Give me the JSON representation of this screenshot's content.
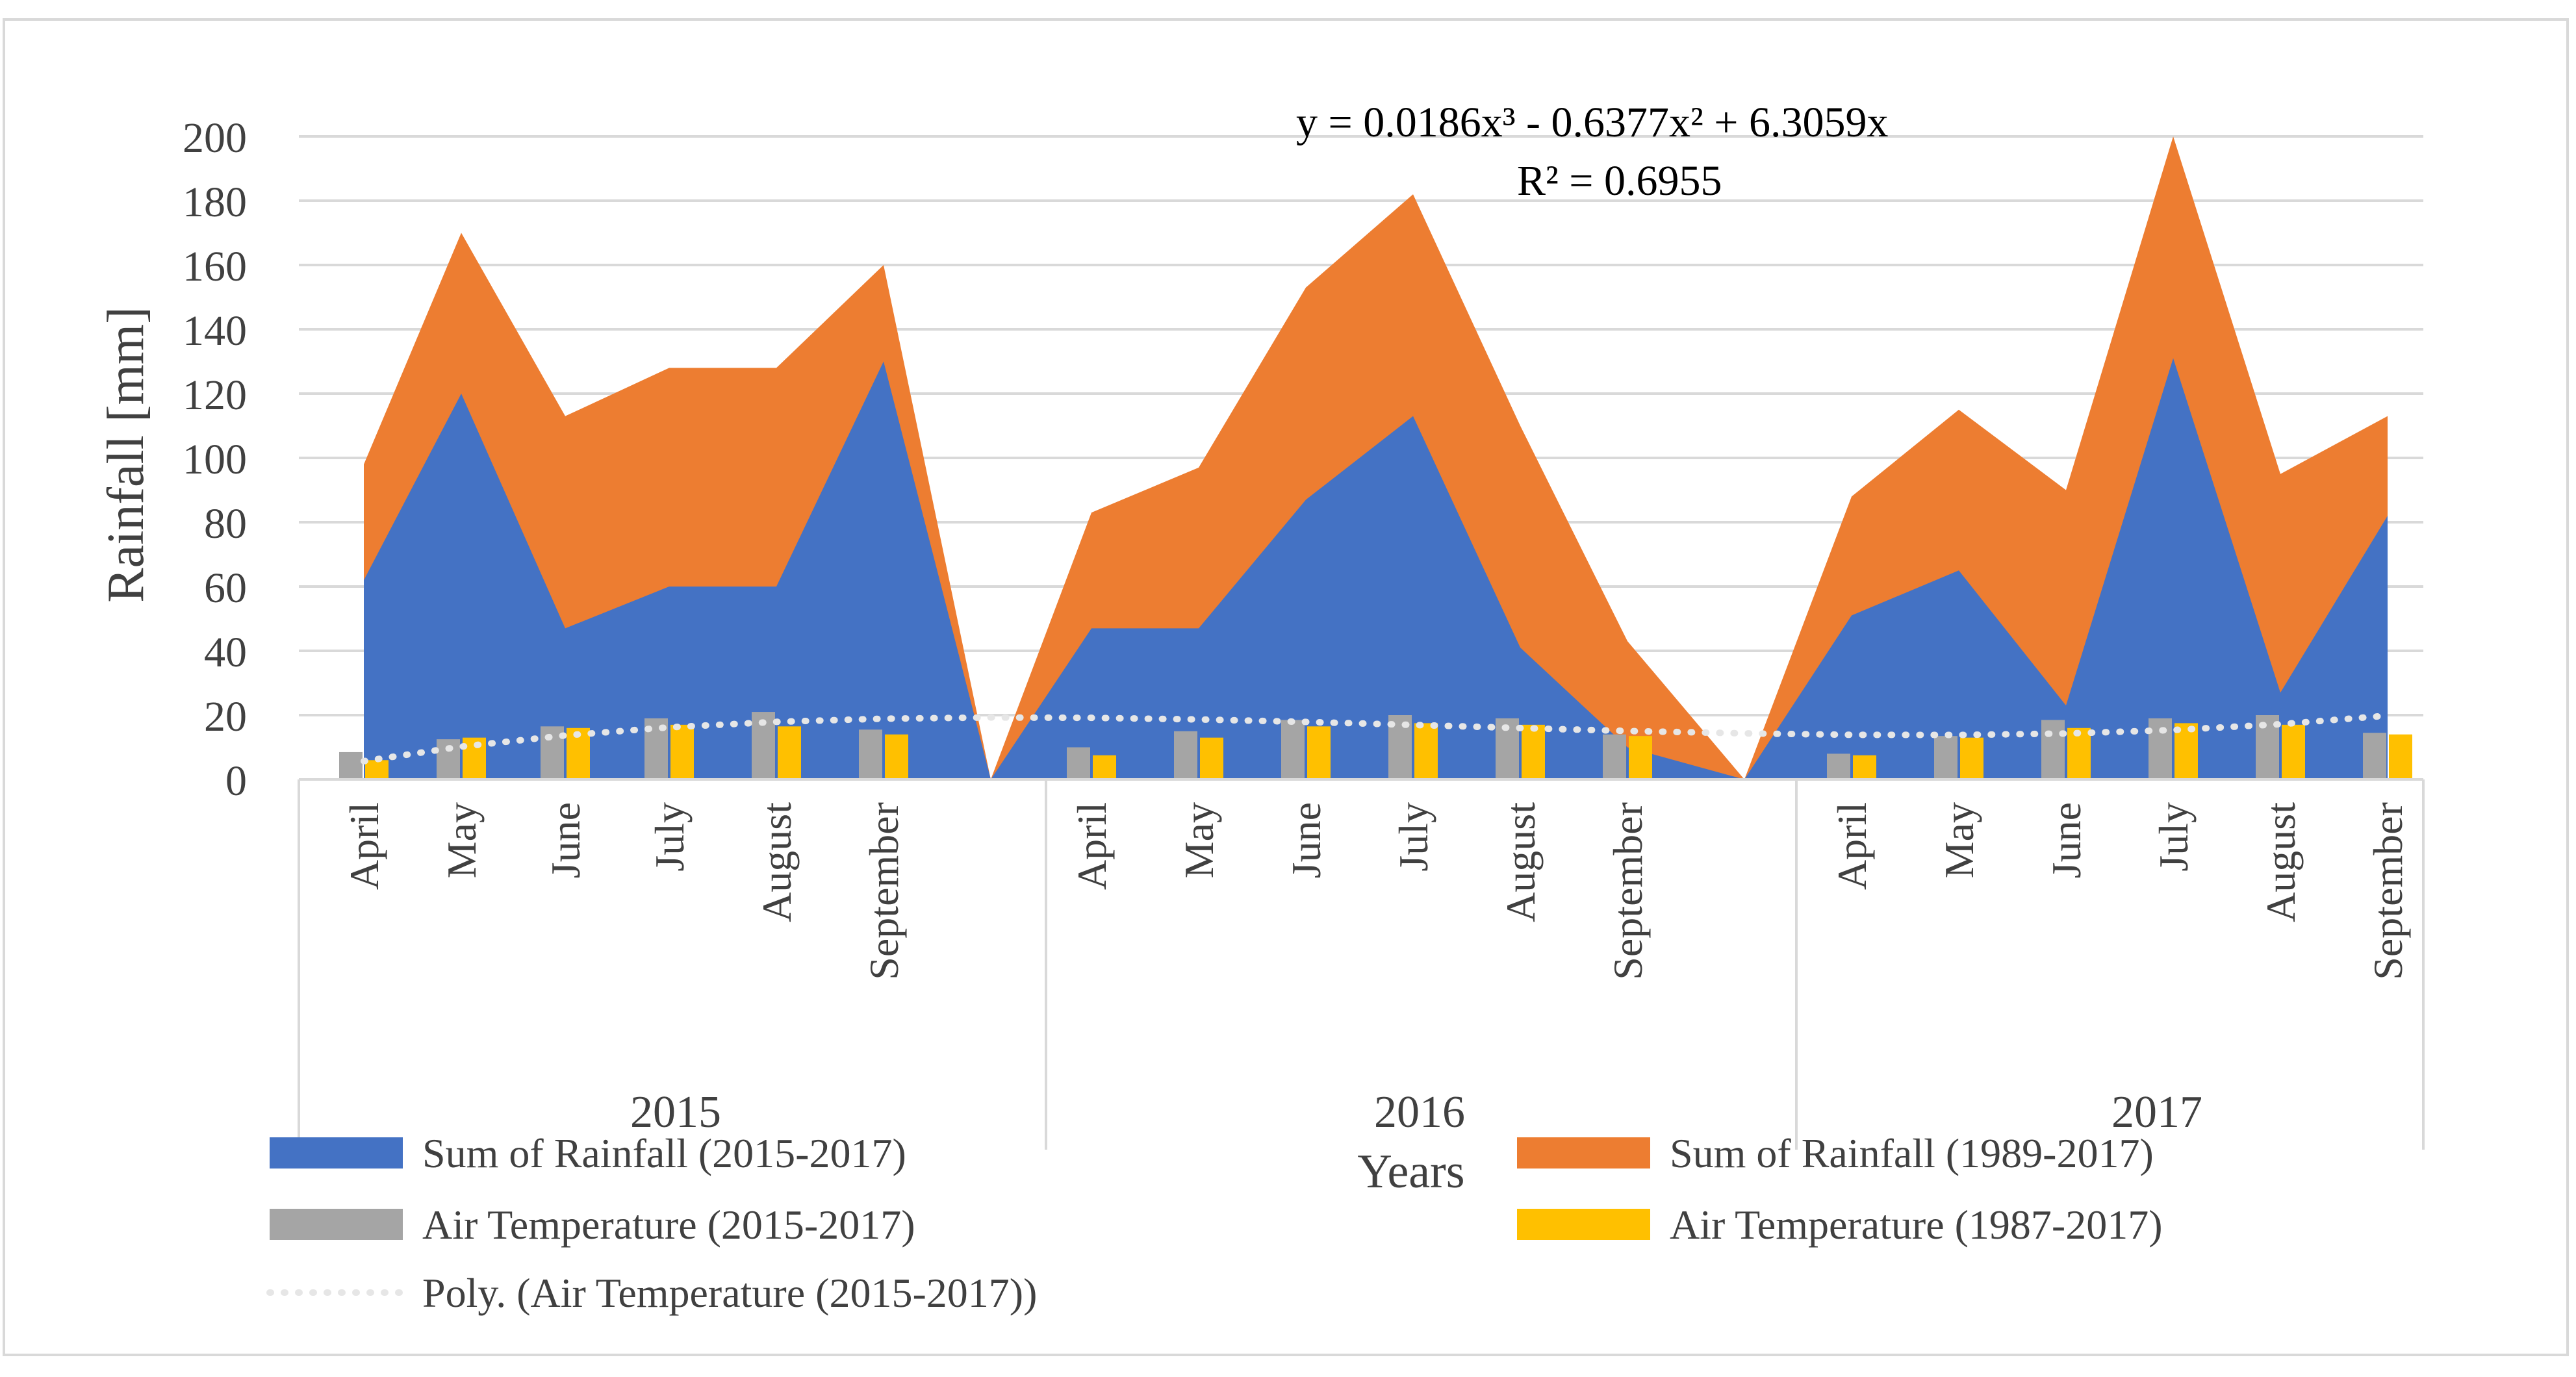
{
  "chart_data": {
    "type": "area",
    "ylabel": "Rainfall [mm]",
    "xlabel": "Years",
    "ylim": [
      0,
      200
    ],
    "yticks": [
      "0",
      "20",
      "40",
      "60",
      "80",
      "100",
      "120",
      "140",
      "160",
      "180",
      "200"
    ],
    "grid": true,
    "legend_position": "bottom",
    "groups": [
      {
        "year": "2015",
        "months": [
          "April",
          "May",
          "June",
          "July",
          "August",
          "September"
        ]
      },
      {
        "year": "2016",
        "months": [
          "April",
          "May",
          "June",
          "July",
          "August",
          "September"
        ]
      },
      {
        "year": "2017",
        "months": [
          "April",
          "May",
          "June",
          "July",
          "August",
          "September"
        ]
      }
    ],
    "series": [
      {
        "name": "Sum of Rainfall (1989-2017)",
        "kind": "area",
        "color": "#ED7D31",
        "values": [
          98,
          170,
          113,
          128,
          128,
          160,
          0,
          83,
          97,
          153,
          182,
          110,
          43,
          0,
          88,
          115,
          90,
          200,
          95,
          113
        ]
      },
      {
        "name": "Sum of Rainfall (2015-2017)",
        "kind": "area",
        "color": "#4472C4",
        "values": [
          62,
          120,
          47,
          60,
          60,
          130,
          0,
          47,
          47,
          87,
          113,
          41,
          10,
          0,
          51,
          65,
          23,
          131,
          27,
          82
        ]
      },
      {
        "name": "Air Temperature (2015-2017)",
        "kind": "bar",
        "color": "#A5A5A5",
        "values": [
          8.5,
          12.5,
          16.5,
          19,
          21,
          15.5,
          10,
          15,
          18.5,
          20,
          19,
          14,
          8,
          13.5,
          18.5,
          19,
          20,
          14.5
        ]
      },
      {
        "name": "Air Temperature (1987-2017)",
        "kind": "bar",
        "color": "#FFC000",
        "values": [
          6,
          13,
          16,
          17,
          16.5,
          14,
          7.5,
          13,
          16.5,
          17.5,
          17,
          13.5,
          7.5,
          13,
          16,
          17.5,
          17,
          14
        ]
      },
      {
        "name": "Poly. (Air Temperature (2015-2017))",
        "kind": "trendline",
        "color": "#E6E6E6",
        "equation": "y = 0.0186x³ - 0.6377x² + 6.3059x",
        "r2": "R² = 0.6955",
        "coefficients": [
          0.0186,
          -0.6377,
          6.3059
        ]
      }
    ],
    "legend": [
      "Sum of Rainfall (2015-2017)",
      "Sum of Rainfall (1989-2017)",
      "Air Temperature (2015-2017)",
      "Air Temperature (1987-2017)",
      "Poly. (Air Temperature (2015-2017))"
    ]
  }
}
